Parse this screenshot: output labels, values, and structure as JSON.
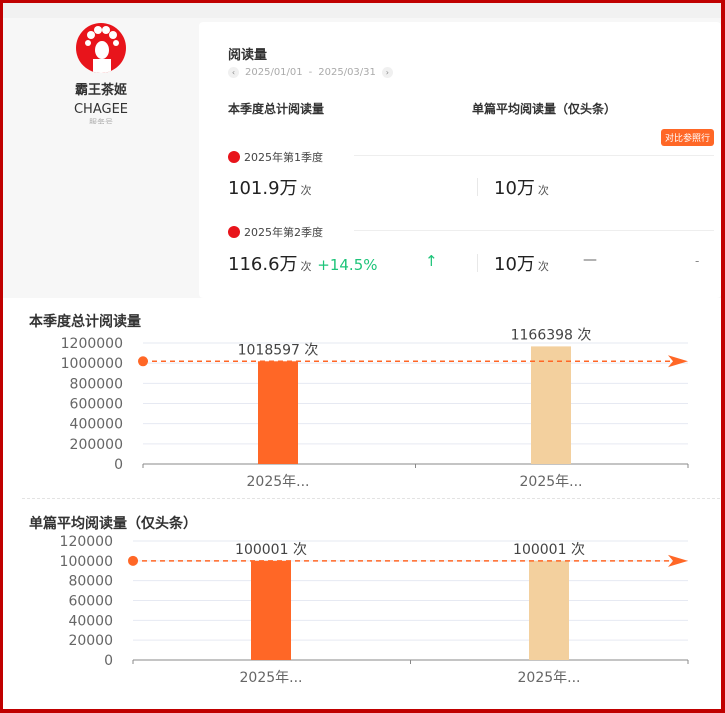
{
  "account": {
    "name": "霸王茶姬",
    "name_en": "CHAGEE",
    "type": "服务号",
    "logo_icon": "opera-face-logo"
  },
  "card": {
    "title": "阅读量",
    "date_start": "2025/01/01",
    "date_sep": "-",
    "date_end": "2025/03/31",
    "col_total": "本季度总计阅读量",
    "col_avg": "单篇平均阅读量（仅头条）",
    "badge": "对比参照行",
    "rows": [
      {
        "label": "2025年第1季度",
        "total": "101.9万",
        "unit": "次",
        "avg": "10万",
        "avg_unit": "次"
      },
      {
        "label": "2025年第2季度",
        "total": "116.6万",
        "unit": "次",
        "change": "+14.5%",
        "trend": "↑",
        "avg": "10万",
        "avg_unit": "次",
        "avg_change": "—",
        "extra": "-"
      }
    ]
  },
  "colors": {
    "q1": "#ff6726",
    "q2": "#f3d09e",
    "ref": "#ff6726",
    "up": "#1ec47a"
  },
  "chart_data": [
    {
      "type": "bar",
      "title": "本季度总计阅读量",
      "categories": [
        "2025年...",
        "2025年..."
      ],
      "values": [
        1018597,
        1166398
      ],
      "data_labels": [
        "1018597 次",
        "1166398 次"
      ],
      "yticks": [
        0,
        200000,
        400000,
        600000,
        800000,
        1000000,
        1200000
      ],
      "ylim": [
        0,
        1200000
      ],
      "reference_line": 1018597,
      "grid": true
    },
    {
      "type": "bar",
      "title": "单篇平均阅读量（仅头条）",
      "categories": [
        "2025年...",
        "2025年..."
      ],
      "values": [
        100001,
        100001
      ],
      "data_labels": [
        "100001 次",
        "100001 次"
      ],
      "yticks": [
        0,
        20000,
        40000,
        60000,
        80000,
        100000,
        120000
      ],
      "ylim": [
        0,
        120000
      ],
      "reference_line": 100001,
      "grid": true
    }
  ]
}
